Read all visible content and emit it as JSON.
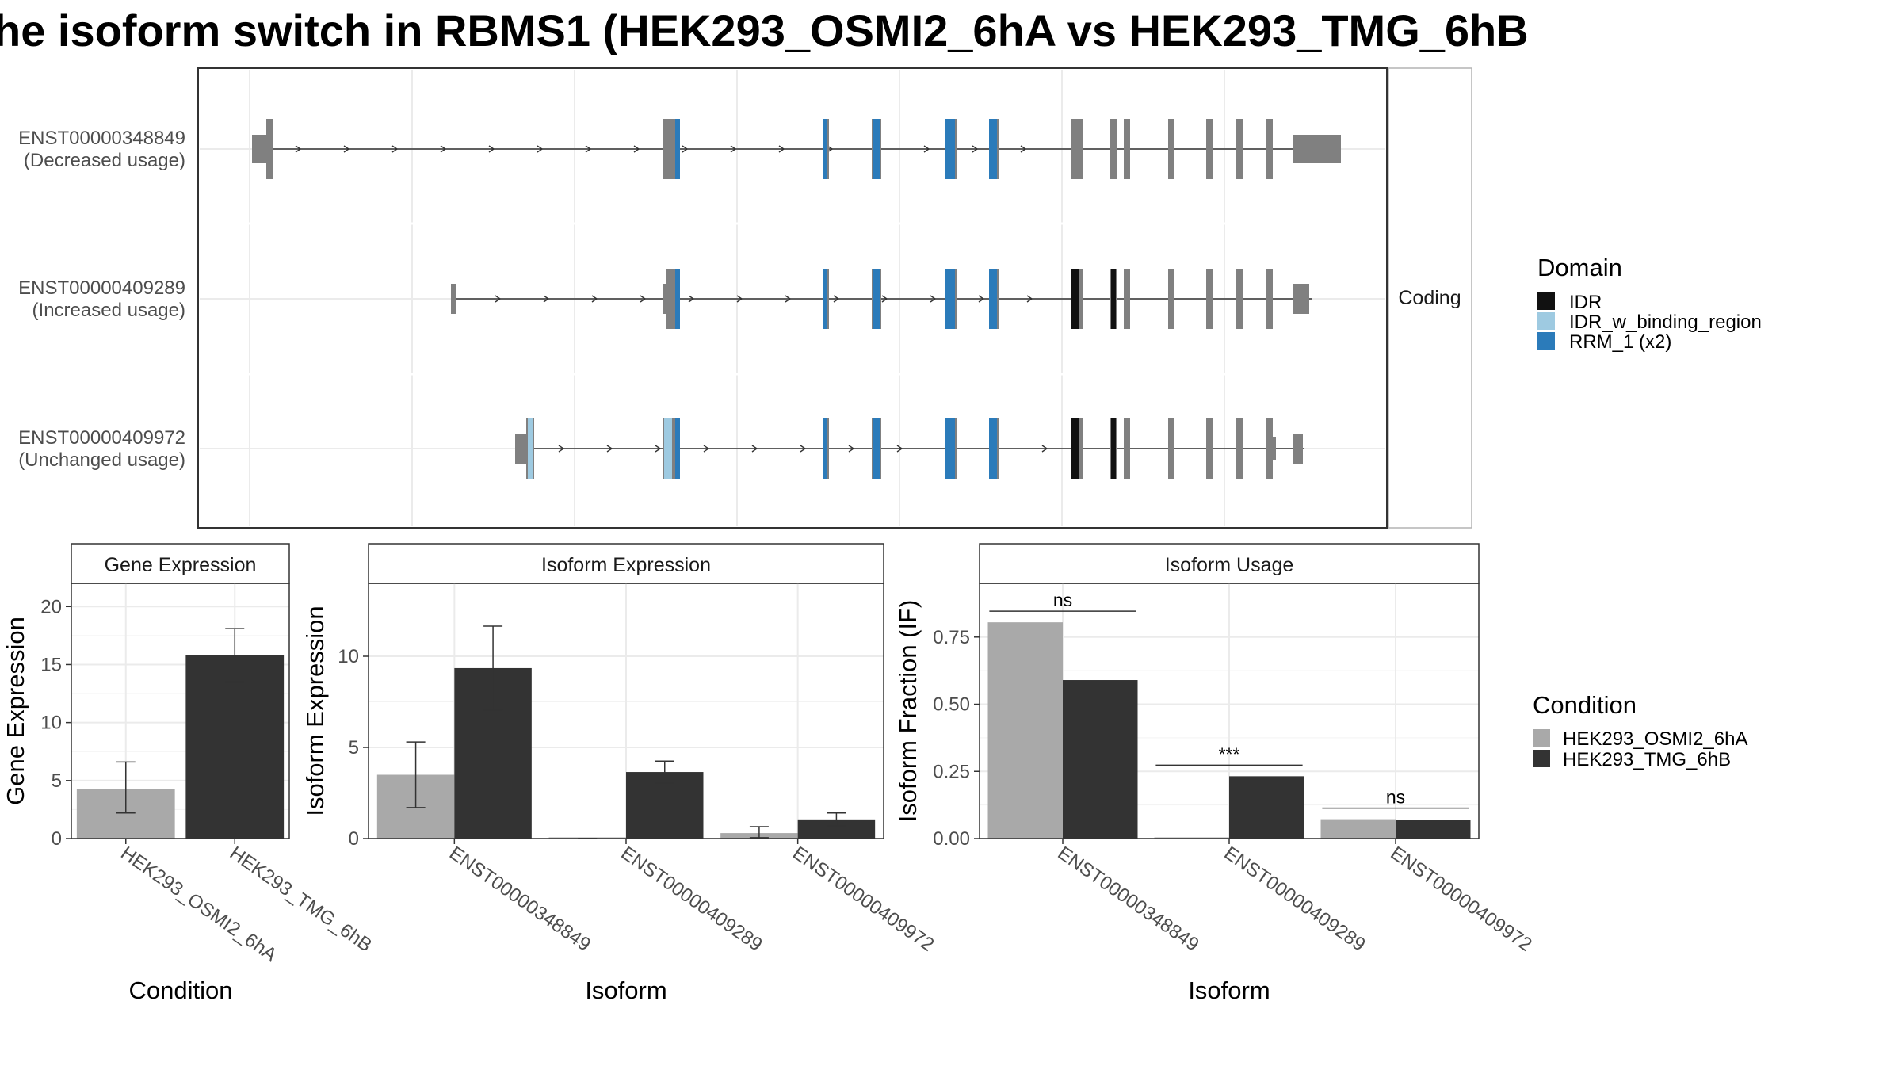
{
  "title": "he isoform switch in RBMS1 (HEK293_OSMI2_6hA vs HEK293_TMG_6hB",
  "colors": {
    "IDR": "#111111",
    "IDR_w_binding_region": "#9ecae1",
    "RRM_1": "#2b7bba",
    "exon": "#808080",
    "condition_a": "#a9a9a9",
    "condition_b": "#333333"
  },
  "transcript_panel": {
    "strip_label": "Coding",
    "tracks": [
      {
        "id": "ENST00000348849",
        "usage": "(Decreased usage)"
      },
      {
        "id": "ENST00000409289",
        "usage": "(Increased usage)"
      },
      {
        "id": "ENST00000409972",
        "usage": "(Unchanged usage)"
      }
    ],
    "domain_legend": {
      "title": "Domain",
      "items": [
        "IDR",
        "IDR_w_binding_region",
        "RRM_1 (x2)"
      ]
    }
  },
  "condition_legend": {
    "title": "Condition",
    "items": [
      "HEK293_OSMI2_6hA",
      "HEK293_TMG_6hB"
    ]
  },
  "chart_data": [
    {
      "type": "bar",
      "panel": "Gene Expression",
      "xlabel": "Condition",
      "ylabel": "Gene Expression",
      "categories": [
        "HEK293_OSMI2_6hA",
        "HEK293_TMG_6hB"
      ],
      "values": [
        4.3,
        15.8
      ],
      "error_low": [
        2.2,
        13.5
      ],
      "error_high": [
        6.6,
        18.1
      ],
      "ylim": [
        0,
        22
      ],
      "yticks": [
        "0",
        "5",
        "10",
        "15",
        "20"
      ]
    },
    {
      "type": "bar",
      "panel": "Isoform Expression",
      "xlabel": "Isoform",
      "ylabel": "Isoform Expression",
      "categories": [
        "ENST00000348849",
        "ENST00000409289",
        "ENST00000409972"
      ],
      "series": [
        {
          "values": [
            3.5,
            0.0,
            0.3
          ],
          "error_low": [
            1.7,
            0.0,
            0.05
          ],
          "error_high": [
            5.3,
            0.0,
            0.65
          ]
        },
        {
          "values": [
            9.35,
            3.65,
            1.05
          ],
          "error_low": [
            7.05,
            3.05,
            0.7
          ],
          "error_high": [
            11.65,
            4.25,
            1.4
          ]
        }
      ],
      "ylim": [
        0,
        14
      ],
      "yticks": [
        "0",
        "5",
        "10"
      ]
    },
    {
      "type": "bar",
      "panel": "Isoform Usage",
      "xlabel": "Isoform",
      "ylabel": "Isoform Fraction (IF)",
      "categories": [
        "ENST00000348849",
        "ENST00000409289",
        "ENST00000409972"
      ],
      "series": [
        {
          "values": [
            0.805,
            0.0,
            0.072
          ]
        },
        {
          "values": [
            0.59,
            0.232,
            0.068
          ]
        }
      ],
      "significance": [
        "ns",
        "***",
        "ns"
      ],
      "ylim": [
        0,
        0.95
      ],
      "yticks": [
        "0.00",
        "0.25",
        "0.50",
        "0.75"
      ]
    }
  ]
}
